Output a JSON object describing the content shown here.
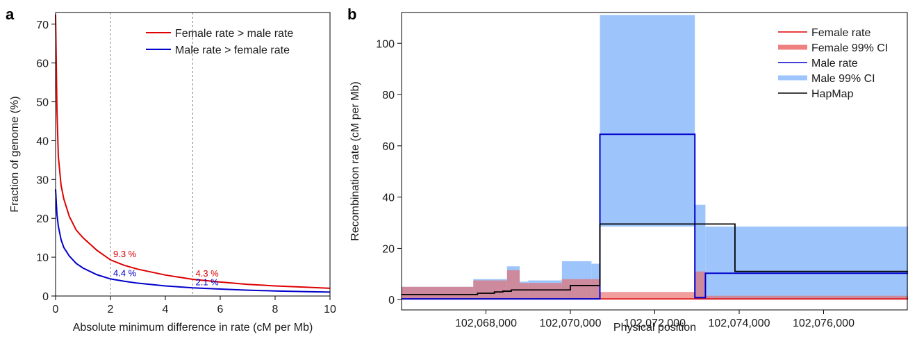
{
  "colors": {
    "female": "#dd0000",
    "male": "#0000cc",
    "female_ci": "#f08080",
    "male_ci": "#9ec5fb",
    "hapmap": "#000000",
    "overlap": "#9b7bb4"
  },
  "chart_data": [
    {
      "panel": "a",
      "type": "line",
      "xlabel": "Absolute minimum difference in rate (cM per Mb)",
      "ylabel": "Fraction of genome (%)",
      "xlim": [
        0,
        10
      ],
      "ylim": [
        0,
        73
      ],
      "xticks": [
        0,
        2,
        4,
        6,
        8,
        10
      ],
      "yticks": [
        0,
        10,
        20,
        30,
        40,
        50,
        60,
        70
      ],
      "vlines": [
        2,
        5
      ],
      "legend_position": "top-right",
      "series": [
        {
          "name": "Female rate > male rate",
          "color": "female",
          "x": [
            0,
            0.05,
            0.1,
            0.2,
            0.3,
            0.5,
            0.75,
            1,
            1.5,
            2,
            2.5,
            3,
            4,
            5,
            6,
            7,
            8,
            9,
            10
          ],
          "y": [
            72.5,
            48,
            36,
            28.5,
            25,
            20.5,
            17,
            15,
            11.8,
            9.3,
            7.9,
            6.9,
            5.4,
            4.3,
            3.6,
            3.0,
            2.6,
            2.3,
            2.0
          ]
        },
        {
          "name": "Male rate > female rate",
          "color": "male",
          "x": [
            0,
            0.05,
            0.1,
            0.2,
            0.3,
            0.5,
            0.75,
            1,
            1.5,
            2,
            2.5,
            3,
            4,
            5,
            6,
            7,
            8,
            9,
            10
          ],
          "y": [
            27.5,
            21,
            18,
            14.5,
            12.5,
            10.3,
            8.4,
            7.2,
            5.5,
            4.4,
            3.8,
            3.3,
            2.6,
            2.1,
            1.8,
            1.5,
            1.3,
            1.15,
            1.0
          ]
        }
      ],
      "annotations": [
        {
          "text": "9.3 %",
          "x": 2,
          "y": 9.3,
          "color": "female"
        },
        {
          "text": "4.4 %",
          "x": 2,
          "y": 4.4,
          "color": "male"
        },
        {
          "text": "4.3 %",
          "x": 5,
          "y": 4.3,
          "color": "female"
        },
        {
          "text": "2.1 %",
          "x": 5,
          "y": 2.1,
          "color": "male"
        }
      ]
    },
    {
      "panel": "b",
      "type": "line",
      "xlabel": "Physical position",
      "ylabel": "Recombination rate (cM per Mb)",
      "xlim": [
        102066000,
        102078000
      ],
      "ylim": [
        -4,
        112
      ],
      "xticks": [
        102068000,
        102070000,
        102072000,
        102074000,
        102076000
      ],
      "xtick_labels": [
        "102,068,000",
        "102,070,000",
        "102,072,000",
        "102,074,000",
        "102,076,000"
      ],
      "yticks": [
        0,
        20,
        40,
        60,
        80,
        100
      ],
      "legend_position": "top-right",
      "legend": [
        {
          "name": "Female rate",
          "color": "female",
          "style": "thin"
        },
        {
          "name": "Female 99% CI",
          "color": "female_ci",
          "style": "thick"
        },
        {
          "name": "Male rate",
          "color": "male",
          "style": "thin"
        },
        {
          "name": "Male 99% CI",
          "color": "male_ci",
          "style": "thick"
        },
        {
          "name": "HapMap",
          "color": "hapmap",
          "style": "thin"
        }
      ],
      "male_ci_blocks": [
        {
          "x0": 102066000,
          "x1": 102067700,
          "lo": 0,
          "hi": 5
        },
        {
          "x0": 102067700,
          "x1": 102068500,
          "lo": 0,
          "hi": 8
        },
        {
          "x0": 102068500,
          "x1": 102068800,
          "lo": 0,
          "hi": 13
        },
        {
          "x0": 102068800,
          "x1": 102069000,
          "lo": 0,
          "hi": 7
        },
        {
          "x0": 102069000,
          "x1": 102069800,
          "lo": 0,
          "hi": 7.5
        },
        {
          "x0": 102069800,
          "x1": 102070500,
          "lo": 0,
          "hi": 15
        },
        {
          "x0": 102070500,
          "x1": 102070700,
          "lo": 0,
          "hi": 14
        },
        {
          "x0": 102070700,
          "x1": 102072950,
          "lo": 28.5,
          "hi": 111
        },
        {
          "x0": 102072950,
          "x1": 102073200,
          "lo": 0,
          "hi": 37
        },
        {
          "x0": 102073200,
          "x1": 102078000,
          "lo": 0,
          "hi": 28.5
        }
      ],
      "female_ci_blocks": [
        {
          "x0": 102066000,
          "x1": 102067700,
          "lo": 0,
          "hi": 5
        },
        {
          "x0": 102067700,
          "x1": 102068500,
          "lo": 0,
          "hi": 7.5
        },
        {
          "x0": 102068500,
          "x1": 102068800,
          "lo": 0,
          "hi": 11.5
        },
        {
          "x0": 102068800,
          "x1": 102069800,
          "lo": 0,
          "hi": 6.5
        },
        {
          "x0": 102069800,
          "x1": 102070700,
          "lo": 0,
          "hi": 8
        },
        {
          "x0": 102070700,
          "x1": 102072950,
          "lo": 0,
          "hi": 3
        },
        {
          "x0": 102072950,
          "x1": 102073200,
          "lo": 0,
          "hi": 11
        },
        {
          "x0": 102073200,
          "x1": 102078000,
          "lo": 0,
          "hi": 1.5
        }
      ],
      "female_rate": {
        "x": [
          102066000,
          102078000
        ],
        "y": [
          0.3,
          0.3
        ]
      },
      "male_rate": {
        "x": [
          102066000,
          102070700,
          102070700,
          102072950,
          102072950,
          102073200,
          102073200,
          102078000
        ],
        "y": [
          0.3,
          0.3,
          64.5,
          64.5,
          0.8,
          0.8,
          10.3,
          10.3
        ]
      },
      "hapmap": {
        "x": [
          102066000,
          102067800,
          102067800,
          102068200,
          102068200,
          102068400,
          102068400,
          102068600,
          102068600,
          102070000,
          102070000,
          102070700,
          102070700,
          102073900,
          102073900,
          102078000
        ],
        "y": [
          2,
          2,
          2.5,
          2.5,
          3,
          3,
          3.3,
          3.3,
          3.8,
          3.8,
          5.5,
          5.5,
          29.5,
          29.5,
          11,
          11
        ]
      }
    }
  ]
}
